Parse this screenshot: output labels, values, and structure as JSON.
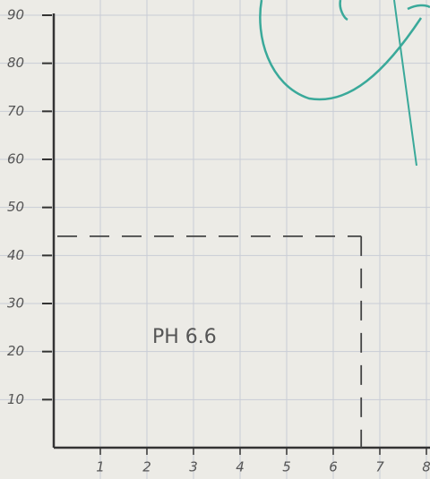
{
  "chart_data": {
    "type": "reference-point",
    "annotation": "PH 6.6",
    "point": {
      "x": 6.6,
      "y": 44
    },
    "xlim": [
      0,
      8
    ],
    "xticks": [
      1,
      2,
      3,
      4,
      5,
      6,
      7,
      8
    ],
    "ylim": [
      0,
      90
    ],
    "yticks": [
      10,
      20,
      30,
      40,
      50,
      60,
      70,
      80,
      90
    ],
    "grid": true,
    "color": "#333"
  }
}
